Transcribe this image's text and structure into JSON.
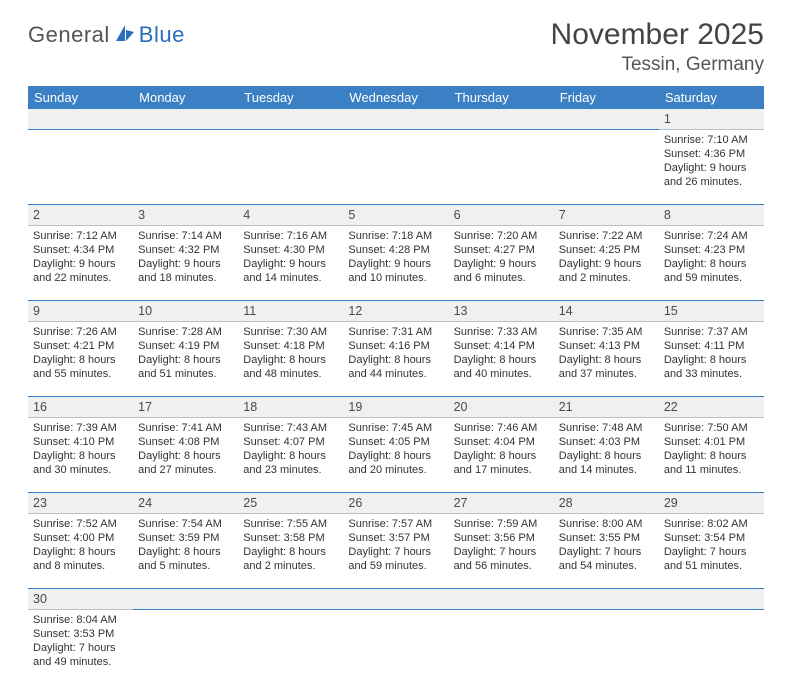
{
  "logo": {
    "part1": "General",
    "part2": "Blue"
  },
  "title": "November 2025",
  "location": "Tessin, Germany",
  "day_headers": [
    "Sunday",
    "Monday",
    "Tuesday",
    "Wednesday",
    "Thursday",
    "Friday",
    "Saturday"
  ],
  "colors": {
    "header_bg": "#3b7fc4",
    "row_sep": "#3b7fc4",
    "daynum_bg": "#eef0f2",
    "brand_blue": "#2a6ebb"
  },
  "weeks": [
    {
      "nums": [
        "",
        "",
        "",
        "",
        "",
        "",
        "1"
      ],
      "cells": [
        null,
        null,
        null,
        null,
        null,
        null,
        {
          "sunrise": "Sunrise: 7:10 AM",
          "sunset": "Sunset: 4:36 PM",
          "day1": "Daylight: 9 hours",
          "day2": "and 26 minutes."
        }
      ]
    },
    {
      "nums": [
        "2",
        "3",
        "4",
        "5",
        "6",
        "7",
        "8"
      ],
      "cells": [
        {
          "sunrise": "Sunrise: 7:12 AM",
          "sunset": "Sunset: 4:34 PM",
          "day1": "Daylight: 9 hours",
          "day2": "and 22 minutes."
        },
        {
          "sunrise": "Sunrise: 7:14 AM",
          "sunset": "Sunset: 4:32 PM",
          "day1": "Daylight: 9 hours",
          "day2": "and 18 minutes."
        },
        {
          "sunrise": "Sunrise: 7:16 AM",
          "sunset": "Sunset: 4:30 PM",
          "day1": "Daylight: 9 hours",
          "day2": "and 14 minutes."
        },
        {
          "sunrise": "Sunrise: 7:18 AM",
          "sunset": "Sunset: 4:28 PM",
          "day1": "Daylight: 9 hours",
          "day2": "and 10 minutes."
        },
        {
          "sunrise": "Sunrise: 7:20 AM",
          "sunset": "Sunset: 4:27 PM",
          "day1": "Daylight: 9 hours",
          "day2": "and 6 minutes."
        },
        {
          "sunrise": "Sunrise: 7:22 AM",
          "sunset": "Sunset: 4:25 PM",
          "day1": "Daylight: 9 hours",
          "day2": "and 2 minutes."
        },
        {
          "sunrise": "Sunrise: 7:24 AM",
          "sunset": "Sunset: 4:23 PM",
          "day1": "Daylight: 8 hours",
          "day2": "and 59 minutes."
        }
      ]
    },
    {
      "nums": [
        "9",
        "10",
        "11",
        "12",
        "13",
        "14",
        "15"
      ],
      "cells": [
        {
          "sunrise": "Sunrise: 7:26 AM",
          "sunset": "Sunset: 4:21 PM",
          "day1": "Daylight: 8 hours",
          "day2": "and 55 minutes."
        },
        {
          "sunrise": "Sunrise: 7:28 AM",
          "sunset": "Sunset: 4:19 PM",
          "day1": "Daylight: 8 hours",
          "day2": "and 51 minutes."
        },
        {
          "sunrise": "Sunrise: 7:30 AM",
          "sunset": "Sunset: 4:18 PM",
          "day1": "Daylight: 8 hours",
          "day2": "and 48 minutes."
        },
        {
          "sunrise": "Sunrise: 7:31 AM",
          "sunset": "Sunset: 4:16 PM",
          "day1": "Daylight: 8 hours",
          "day2": "and 44 minutes."
        },
        {
          "sunrise": "Sunrise: 7:33 AM",
          "sunset": "Sunset: 4:14 PM",
          "day1": "Daylight: 8 hours",
          "day2": "and 40 minutes."
        },
        {
          "sunrise": "Sunrise: 7:35 AM",
          "sunset": "Sunset: 4:13 PM",
          "day1": "Daylight: 8 hours",
          "day2": "and 37 minutes."
        },
        {
          "sunrise": "Sunrise: 7:37 AM",
          "sunset": "Sunset: 4:11 PM",
          "day1": "Daylight: 8 hours",
          "day2": "and 33 minutes."
        }
      ]
    },
    {
      "nums": [
        "16",
        "17",
        "18",
        "19",
        "20",
        "21",
        "22"
      ],
      "cells": [
        {
          "sunrise": "Sunrise: 7:39 AM",
          "sunset": "Sunset: 4:10 PM",
          "day1": "Daylight: 8 hours",
          "day2": "and 30 minutes."
        },
        {
          "sunrise": "Sunrise: 7:41 AM",
          "sunset": "Sunset: 4:08 PM",
          "day1": "Daylight: 8 hours",
          "day2": "and 27 minutes."
        },
        {
          "sunrise": "Sunrise: 7:43 AM",
          "sunset": "Sunset: 4:07 PM",
          "day1": "Daylight: 8 hours",
          "day2": "and 23 minutes."
        },
        {
          "sunrise": "Sunrise: 7:45 AM",
          "sunset": "Sunset: 4:05 PM",
          "day1": "Daylight: 8 hours",
          "day2": "and 20 minutes."
        },
        {
          "sunrise": "Sunrise: 7:46 AM",
          "sunset": "Sunset: 4:04 PM",
          "day1": "Daylight: 8 hours",
          "day2": "and 17 minutes."
        },
        {
          "sunrise": "Sunrise: 7:48 AM",
          "sunset": "Sunset: 4:03 PM",
          "day1": "Daylight: 8 hours",
          "day2": "and 14 minutes."
        },
        {
          "sunrise": "Sunrise: 7:50 AM",
          "sunset": "Sunset: 4:01 PM",
          "day1": "Daylight: 8 hours",
          "day2": "and 11 minutes."
        }
      ]
    },
    {
      "nums": [
        "23",
        "24",
        "25",
        "26",
        "27",
        "28",
        "29"
      ],
      "cells": [
        {
          "sunrise": "Sunrise: 7:52 AM",
          "sunset": "Sunset: 4:00 PM",
          "day1": "Daylight: 8 hours",
          "day2": "and 8 minutes."
        },
        {
          "sunrise": "Sunrise: 7:54 AM",
          "sunset": "Sunset: 3:59 PM",
          "day1": "Daylight: 8 hours",
          "day2": "and 5 minutes."
        },
        {
          "sunrise": "Sunrise: 7:55 AM",
          "sunset": "Sunset: 3:58 PM",
          "day1": "Daylight: 8 hours",
          "day2": "and 2 minutes."
        },
        {
          "sunrise": "Sunrise: 7:57 AM",
          "sunset": "Sunset: 3:57 PM",
          "day1": "Daylight: 7 hours",
          "day2": "and 59 minutes."
        },
        {
          "sunrise": "Sunrise: 7:59 AM",
          "sunset": "Sunset: 3:56 PM",
          "day1": "Daylight: 7 hours",
          "day2": "and 56 minutes."
        },
        {
          "sunrise": "Sunrise: 8:00 AM",
          "sunset": "Sunset: 3:55 PM",
          "day1": "Daylight: 7 hours",
          "day2": "and 54 minutes."
        },
        {
          "sunrise": "Sunrise: 8:02 AM",
          "sunset": "Sunset: 3:54 PM",
          "day1": "Daylight: 7 hours",
          "day2": "and 51 minutes."
        }
      ]
    },
    {
      "nums": [
        "30",
        "",
        "",
        "",
        "",
        "",
        ""
      ],
      "cells": [
        {
          "sunrise": "Sunrise: 8:04 AM",
          "sunset": "Sunset: 3:53 PM",
          "day1": "Daylight: 7 hours",
          "day2": "and 49 minutes."
        },
        null,
        null,
        null,
        null,
        null,
        null
      ]
    }
  ]
}
